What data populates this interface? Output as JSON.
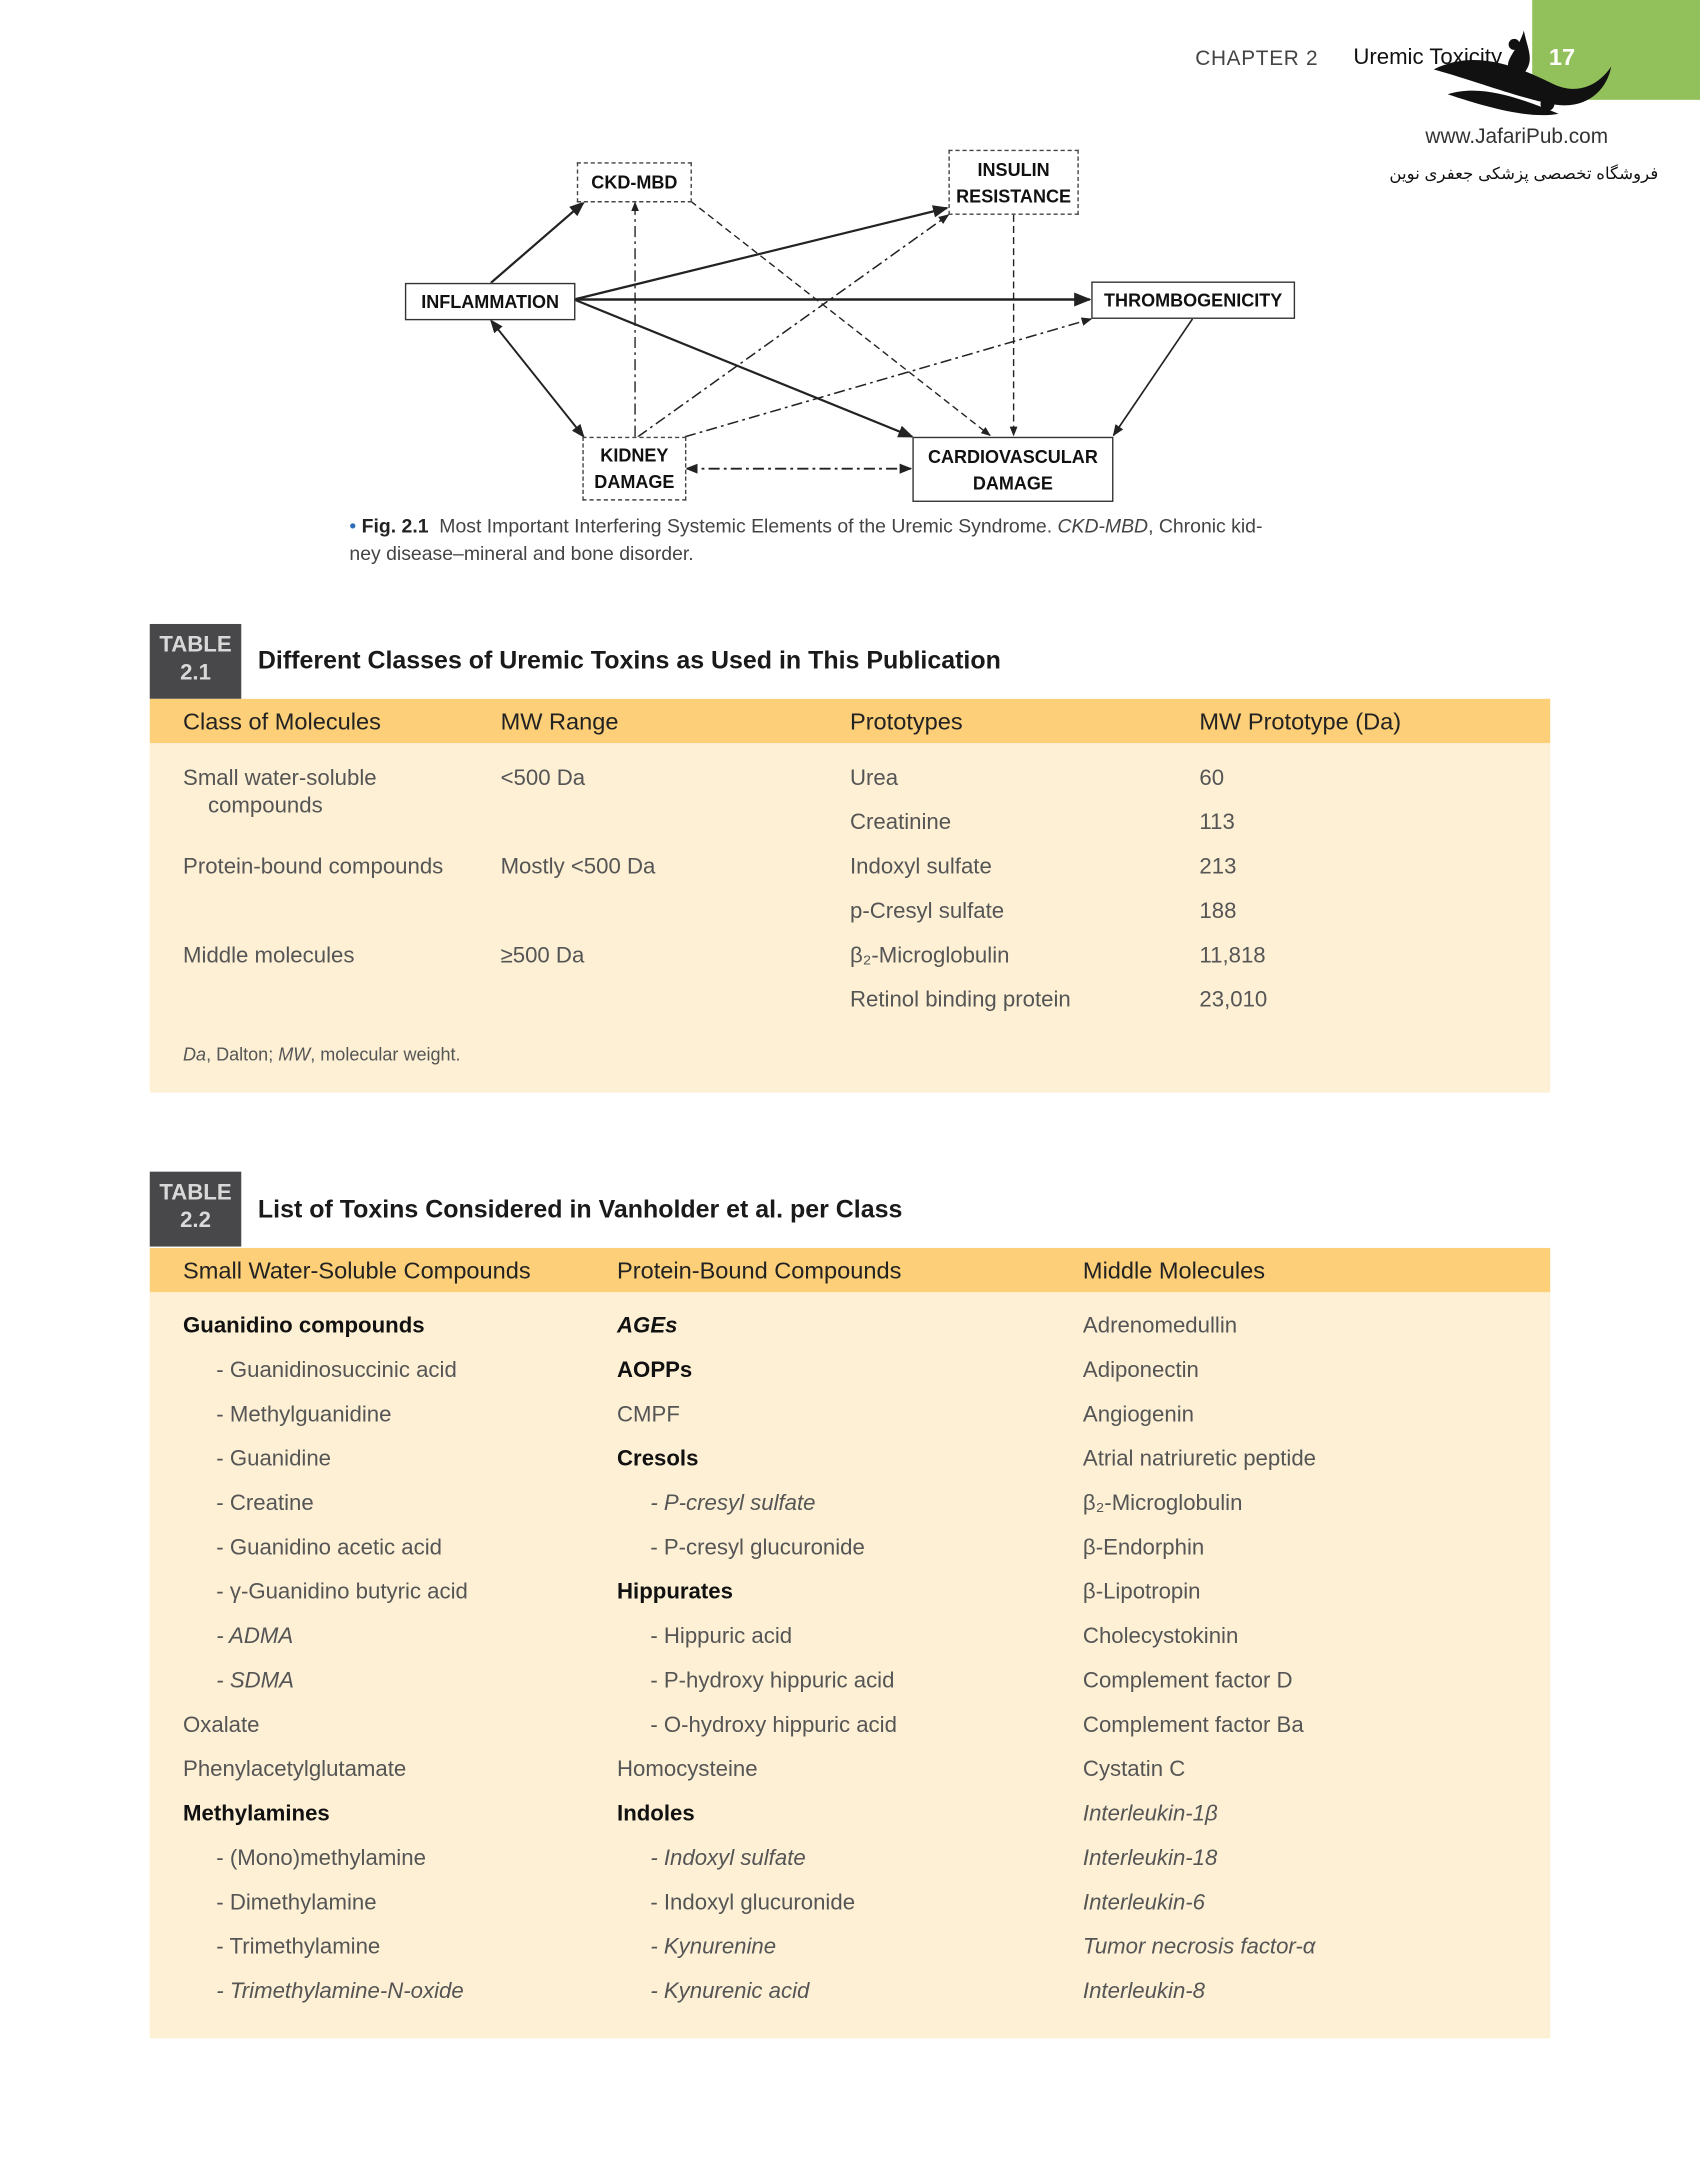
{
  "header": {
    "chapter": "CHAPTER 2",
    "title": "Uremic Toxicity",
    "page_number": "17",
    "accent_color": "#92c05b"
  },
  "watermark": {
    "url": "www.JafariPub.com",
    "tagline": "فروشگاه تخصصی پزشکی جعفری نوین"
  },
  "figure": {
    "nodes": {
      "ckd_mbd": "CKD-MBD",
      "insulin_resistance": [
        "INSULIN",
        "RESISTANCE"
      ],
      "inflammation": "INFLAMMATION",
      "thrombogenicity": "THROMBOGENICITY",
      "kidney_damage": [
        "KIDNEY",
        "DAMAGE"
      ],
      "cardiovascular_damage": [
        "CARDIOVASCULAR",
        "DAMAGE"
      ]
    },
    "caption": {
      "label": "Fig. 2.1",
      "text": "Most Important Interfering Systemic Elements of the Uremic Syndrome.",
      "abbr": "CKD-MBD",
      "text_after": ", Chronic kid-",
      "line2": "ney disease–mineral and bone disorder."
    }
  },
  "table1": {
    "label": "TABLE",
    "number": "2.1",
    "title": "Different Classes of Uremic Toxins as Used in This Publication",
    "header_color": "#fccf78",
    "body_color": "#fdf0d5",
    "columns": [
      "Class of Molecules",
      "MW Range",
      "Prototypes",
      "MW Prototype (Da)"
    ],
    "rows": [
      {
        "class": [
          "Small water-soluble",
          "compounds"
        ],
        "range": "<500 Da",
        "prototypes": [
          [
            "Urea",
            "60"
          ],
          [
            "Creatinine",
            "113"
          ]
        ]
      },
      {
        "class": [
          "Protein-bound compounds"
        ],
        "range": "Mostly <500 Da",
        "prototypes": [
          [
            "Indoxyl sulfate",
            "213"
          ],
          [
            "p-Cresyl sulfate",
            "188"
          ]
        ]
      },
      {
        "class": [
          "Middle molecules"
        ],
        "range": "≥500 Da",
        "prototypes": [
          [
            "β₂-Microglobulin",
            "11,818"
          ],
          [
            "Retinol binding protein",
            "23,010"
          ]
        ]
      }
    ],
    "footnote": {
      "a": "Da",
      "b": ", Dalton; ",
      "c": "MW",
      "d": ", molecular weight."
    }
  },
  "table2": {
    "label": "TABLE",
    "number": "2.2",
    "title": "List of Toxins Considered in Vanholder et al. per Class",
    "columns": [
      "Small Water-Soluble Compounds",
      "Protein-Bound Compounds",
      "Middle Molecules"
    ],
    "col1": [
      {
        "t": "Guanidino compounds",
        "s": "bold"
      },
      {
        "t": "- Guanidinosuccinic acid",
        "i": 1
      },
      {
        "t": "- Methylguanidine",
        "i": 1
      },
      {
        "t": "- Guanidine",
        "i": 1
      },
      {
        "t": "- Creatine",
        "i": 1
      },
      {
        "t": "- Guanidino acetic acid",
        "i": 1
      },
      {
        "t": "- γ-Guanidino butyric acid",
        "i": 1
      },
      {
        "t": "- ADMA",
        "i": 1,
        "s": "italic"
      },
      {
        "t": "- SDMA",
        "i": 1,
        "s": "italic"
      },
      {
        "t": "Oxalate"
      },
      {
        "t": "Phenylacetylglutamate"
      },
      {
        "t": "Methylamines",
        "s": "bold"
      },
      {
        "t": "- (Mono)methylamine",
        "i": 1
      },
      {
        "t": "- Dimethylamine",
        "i": 1
      },
      {
        "t": "- Trimethylamine",
        "i": 1
      },
      {
        "t": "- Trimethylamine-N-oxide",
        "i": 1,
        "s": "italic"
      }
    ],
    "col2": [
      {
        "t": "AGEs",
        "s": "bold italic"
      },
      {
        "t": "AOPPs",
        "s": "bold"
      },
      {
        "t": "CMPF"
      },
      {
        "t": "Cresols",
        "s": "bold"
      },
      {
        "t": "- P-cresyl sulfate",
        "i": 1,
        "s": "italic"
      },
      {
        "t": "- P-cresyl glucuronide",
        "i": 1
      },
      {
        "t": "Hippurates",
        "s": "bold"
      },
      {
        "t": "- Hippuric acid",
        "i": 1
      },
      {
        "t": "- P-hydroxy hippuric acid",
        "i": 1
      },
      {
        "t": "- O-hydroxy hippuric acid",
        "i": 1
      },
      {
        "t": "Homocysteine"
      },
      {
        "t": "Indoles",
        "s": "bold"
      },
      {
        "t": "- Indoxyl sulfate",
        "i": 1,
        "s": "italic"
      },
      {
        "t": "- Indoxyl glucuronide",
        "i": 1
      },
      {
        "t": "- Kynurenine",
        "i": 1,
        "s": "italic"
      },
      {
        "t": "- Kynurenic acid",
        "i": 1,
        "s": "italic"
      }
    ],
    "col3": [
      {
        "t": "Adrenomedullin"
      },
      {
        "t": "Adiponectin"
      },
      {
        "t": "Angiogenin"
      },
      {
        "t": "Atrial natriuretic peptide"
      },
      {
        "t": "β₂-Microglobulin"
      },
      {
        "t": "β-Endorphin"
      },
      {
        "t": "β-Lipotropin"
      },
      {
        "t": "Cholecystokinin"
      },
      {
        "t": "Complement factor D"
      },
      {
        "t": "Complement factor Ba"
      },
      {
        "t": "Cystatin C"
      },
      {
        "t": "Interleukin-1β",
        "s": "italic"
      },
      {
        "t": "Interleukin-18",
        "s": "italic"
      },
      {
        "t": "Interleukin-6",
        "s": "italic"
      },
      {
        "t": "Tumor necrosis factor-α",
        "s": "italic"
      },
      {
        "t": "Interleukin-8",
        "s": "italic"
      }
    ]
  }
}
